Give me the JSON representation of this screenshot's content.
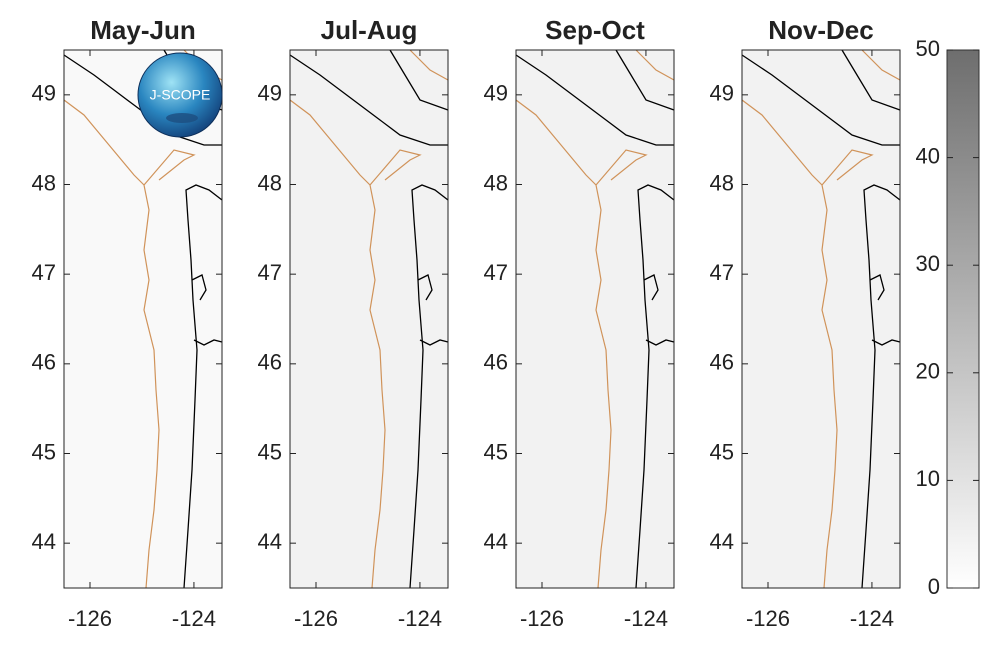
{
  "panels": [
    {
      "title": "May-Jun"
    },
    {
      "title": "Jul-Aug"
    },
    {
      "title": "Sep-Oct"
    },
    {
      "title": "Nov-Dec"
    }
  ],
  "lat_lim": [
    43.5,
    49.5
  ],
  "lat_ticks": [
    44,
    45,
    46,
    47,
    48,
    49
  ],
  "lon_lim": [
    -126.5,
    -123.46
  ],
  "lon_ticks": [
    -126,
    -124
  ],
  "colorbar": {
    "lim": [
      0,
      50
    ],
    "ticks": [
      0,
      10,
      20,
      30,
      40,
      50
    ]
  },
  "logo": "J-SCOPE"
}
